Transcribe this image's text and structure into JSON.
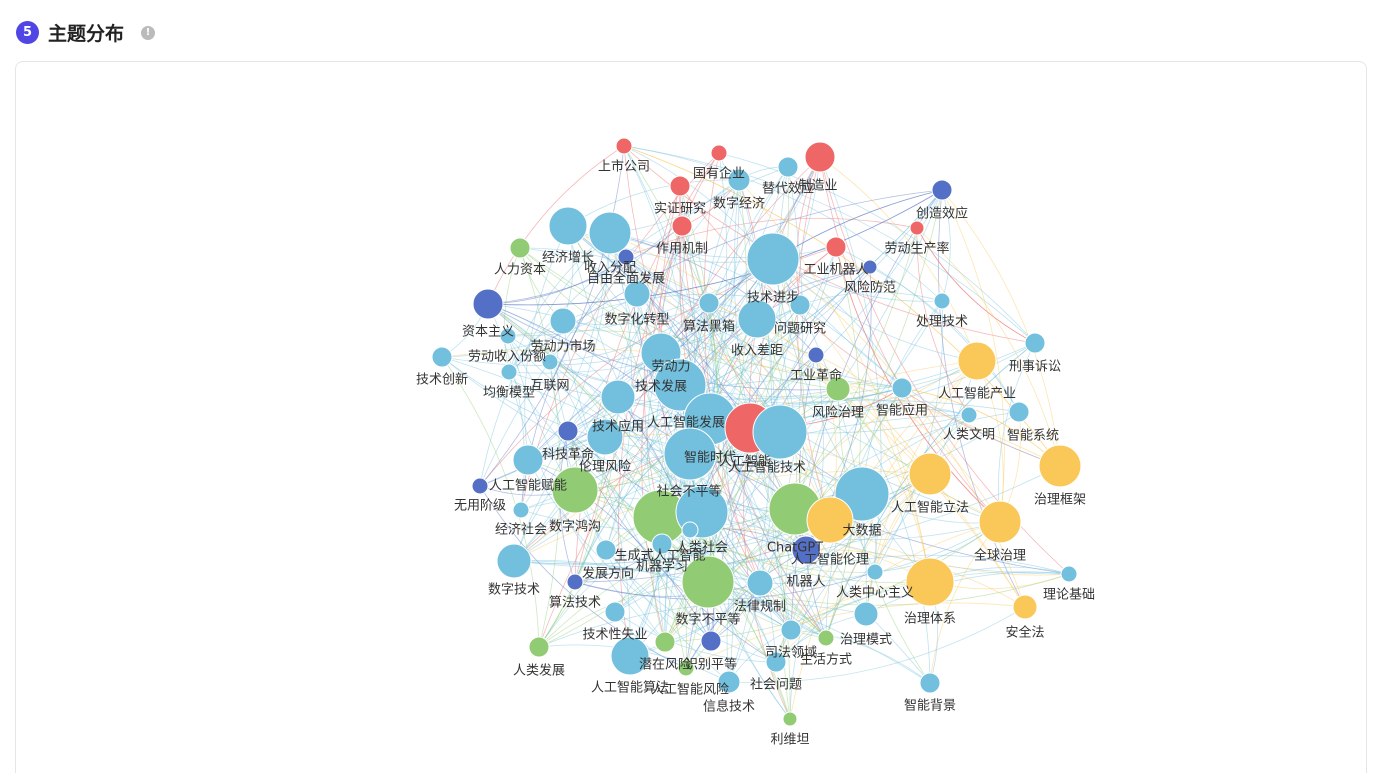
{
  "header": {
    "badge": "5",
    "title": "主题分布"
  },
  "chart_data": {
    "type": "graph",
    "nodes": [
      {
        "name": "上市公司",
        "color": "#ee6666"
      },
      {
        "name": "国有企业",
        "color": "#ee6666"
      },
      {
        "name": "制造业",
        "color": "#ee6666"
      },
      {
        "name": "替代效应",
        "color": "#73c0de"
      },
      {
        "name": "数字经济",
        "color": "#73c0de"
      },
      {
        "name": "实证研究",
        "color": "#ee6666"
      },
      {
        "name": "创造效应",
        "color": "#5470c6"
      },
      {
        "name": "劳动生产率",
        "color": "#ee6666"
      },
      {
        "name": "作用机制",
        "color": "#ee6666"
      },
      {
        "name": "经济增长",
        "color": "#73c0de"
      },
      {
        "name": "收入分配",
        "color": "#73c0de"
      },
      {
        "name": "人力资本",
        "color": "#91cc75"
      },
      {
        "name": "自由全面发展",
        "color": "#5470c6"
      },
      {
        "name": "工业机器人",
        "color": "#ee6666"
      },
      {
        "name": "风险防范",
        "color": "#5470c6"
      },
      {
        "name": "技术进步",
        "color": "#73c0de"
      },
      {
        "name": "资本主义",
        "color": "#5470c6"
      },
      {
        "name": "数字化转型",
        "color": "#73c0de"
      },
      {
        "name": "算法黑箱",
        "color": "#73c0de"
      },
      {
        "name": "问题研究",
        "color": "#73c0de"
      },
      {
        "name": "处理技术",
        "color": "#73c0de"
      },
      {
        "name": "收入差距",
        "color": "#73c0de"
      },
      {
        "name": "劳动力市场",
        "color": "#73c0de"
      },
      {
        "name": "刑事诉讼",
        "color": "#73c0de"
      },
      {
        "name": "劳动收入份额",
        "color": "#73c0de"
      },
      {
        "name": "技术创新",
        "color": "#73c0de"
      },
      {
        "name": "劳动力",
        "color": "#73c0de"
      },
      {
        "name": "工业革命",
        "color": "#5470c6"
      },
      {
        "name": "人工智能产业",
        "color": "#fac858"
      },
      {
        "name": "均衡模型",
        "color": "#73c0de"
      },
      {
        "name": "互联网",
        "color": "#73c0de"
      },
      {
        "name": "技术发展",
        "color": "#73c0de"
      },
      {
        "name": "风险治理",
        "color": "#91cc75"
      },
      {
        "name": "智能应用",
        "color": "#73c0de"
      },
      {
        "name": "人类文明",
        "color": "#73c0de"
      },
      {
        "name": "智能系统",
        "color": "#73c0de"
      },
      {
        "name": "人工智能发展",
        "color": "#73c0de"
      },
      {
        "name": "技术应用",
        "color": "#73c0de"
      },
      {
        "name": "伦理风险",
        "color": "#73c0de"
      },
      {
        "name": "科技革命",
        "color": "#5470c6"
      },
      {
        "name": "人工智能赋能",
        "color": "#73c0de"
      },
      {
        "name": "无用阶级",
        "color": "#5470c6"
      },
      {
        "name": "经济社会",
        "color": "#73c0de"
      },
      {
        "name": "人工智能",
        "color": "#ee6666"
      },
      {
        "name": "人工智能技术",
        "color": "#73c0de"
      },
      {
        "name": "智能时代",
        "color": "#73c0de"
      },
      {
        "name": "治理框架",
        "color": "#fac858"
      },
      {
        "name": "人工智能立法",
        "color": "#fac858"
      },
      {
        "name": "社会不平等",
        "color": "#91cc75"
      },
      {
        "name": "大数据",
        "color": "#73c0de"
      },
      {
        "name": "全球治理",
        "color": "#fac858"
      },
      {
        "name": "数字鸿沟",
        "color": "#91cc75"
      },
      {
        "name": "人类社会",
        "color": "#73c0de"
      },
      {
        "name": "ChatGPT",
        "color": "#91cc75"
      },
      {
        "name": "人工智能伦理",
        "color": "#fac858"
      },
      {
        "name": "生成式人工智能",
        "color": "#73c0de"
      },
      {
        "name": "机器学习",
        "color": "#73c0de"
      },
      {
        "name": "机器人",
        "color": "#5470c6"
      },
      {
        "name": "法律规制",
        "color": "#73c0de"
      },
      {
        "name": "发展方向",
        "color": "#73c0de"
      },
      {
        "name": "算法技术",
        "color": "#5470c6"
      },
      {
        "name": "数字技术",
        "color": "#73c0de"
      },
      {
        "name": "人类中心主义",
        "color": "#73c0de"
      },
      {
        "name": "治理体系",
        "color": "#fac858"
      },
      {
        "name": "数字不平等",
        "color": "#91cc75"
      },
      {
        "name": "理论基础",
        "color": "#73c0de"
      },
      {
        "name": "安全法",
        "color": "#fac858"
      },
      {
        "name": "技术性失业",
        "color": "#73c0de"
      },
      {
        "name": "治理模式",
        "color": "#73c0de"
      },
      {
        "name": "人类发展",
        "color": "#91cc75"
      },
      {
        "name": "潜在风险",
        "color": "#91cc75"
      },
      {
        "name": "识别平等",
        "color": "#5470c6"
      },
      {
        "name": "司法领域",
        "color": "#73c0de"
      },
      {
        "name": "生活方式",
        "color": "#91cc75"
      },
      {
        "name": "人工智能算法",
        "color": "#73c0de"
      },
      {
        "name": "人工智能风险",
        "color": "#91cc75"
      },
      {
        "name": "社会问题",
        "color": "#73c0de"
      },
      {
        "name": "信息技术",
        "color": "#73c0de"
      },
      {
        "name": "智能背景",
        "color": "#73c0de"
      },
      {
        "name": "利维坦",
        "color": "#91cc75"
      }
    ]
  }
}
